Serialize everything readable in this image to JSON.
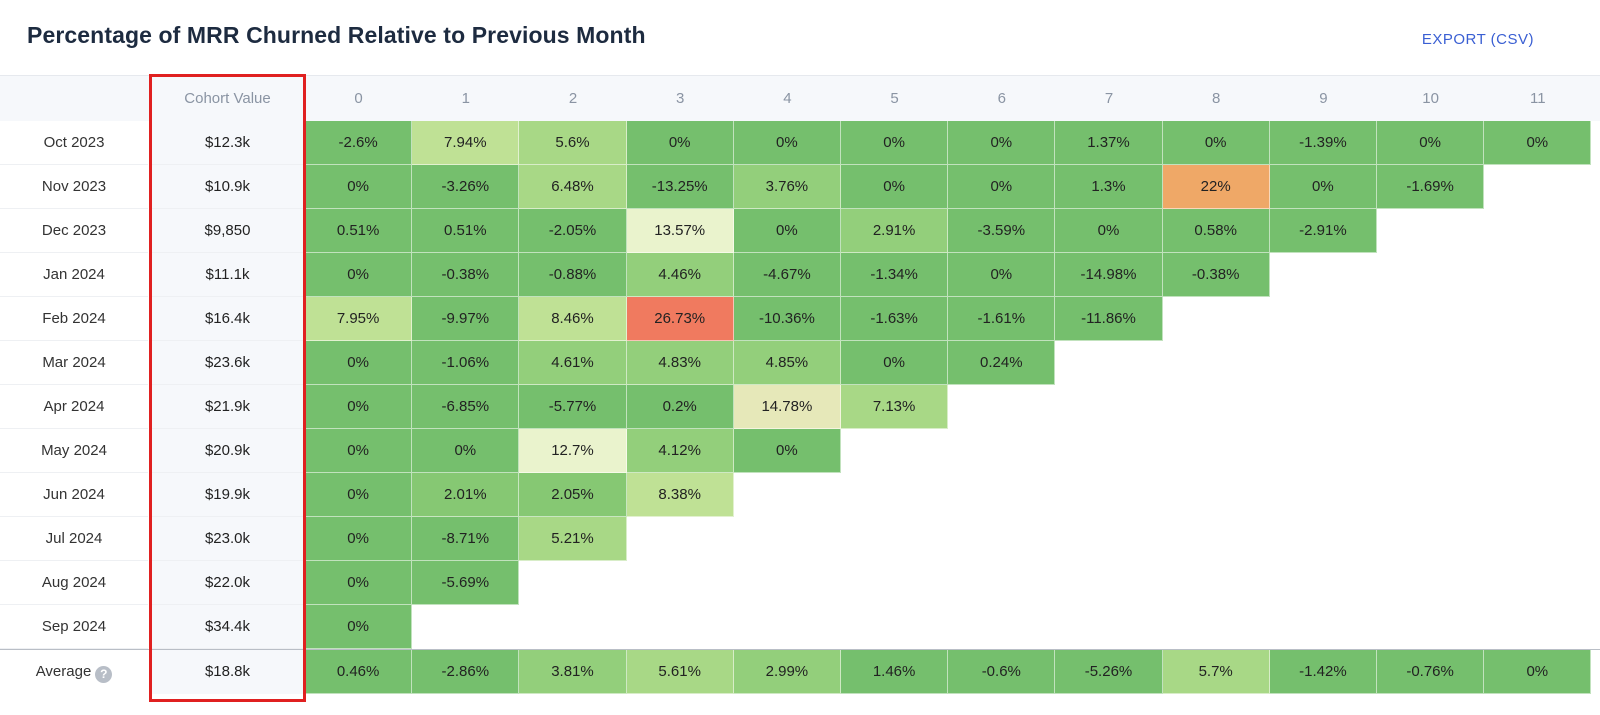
{
  "header": {
    "title": "Percentage of MRR Churned Relative to Previous Month",
    "export_label": "EXPORT (CSV)"
  },
  "table": {
    "cohort_header": "Cohort Value",
    "periods": [
      "0",
      "1",
      "2",
      "3",
      "4",
      "5",
      "6",
      "7",
      "8",
      "9",
      "10",
      "11"
    ],
    "rows": [
      {
        "label": "Oct 2023",
        "value": "$12.3k",
        "cells": [
          "-2.6%",
          "7.94%",
          "5.6%",
          "0%",
          "0%",
          "0%",
          "0%",
          "1.37%",
          "0%",
          "-1.39%",
          "0%",
          "0%"
        ]
      },
      {
        "label": "Nov 2023",
        "value": "$10.9k",
        "cells": [
          "0%",
          "-3.26%",
          "6.48%",
          "-13.25%",
          "3.76%",
          "0%",
          "0%",
          "1.3%",
          "22%",
          "0%",
          "-1.69%"
        ]
      },
      {
        "label": "Dec 2023",
        "value": "$9,850",
        "cells": [
          "0.51%",
          "0.51%",
          "-2.05%",
          "13.57%",
          "0%",
          "2.91%",
          "-3.59%",
          "0%",
          "0.58%",
          "-2.91%"
        ]
      },
      {
        "label": "Jan 2024",
        "value": "$11.1k",
        "cells": [
          "0%",
          "-0.38%",
          "-0.88%",
          "4.46%",
          "-4.67%",
          "-1.34%",
          "0%",
          "-14.98%",
          "-0.38%"
        ]
      },
      {
        "label": "Feb 2024",
        "value": "$16.4k",
        "cells": [
          "7.95%",
          "-9.97%",
          "8.46%",
          "26.73%",
          "-10.36%",
          "-1.63%",
          "-1.61%",
          "-11.86%"
        ]
      },
      {
        "label": "Mar 2024",
        "value": "$23.6k",
        "cells": [
          "0%",
          "-1.06%",
          "4.61%",
          "4.83%",
          "4.85%",
          "0%",
          "0.24%"
        ]
      },
      {
        "label": "Apr 2024",
        "value": "$21.9k",
        "cells": [
          "0%",
          "-6.85%",
          "-5.77%",
          "0.2%",
          "14.78%",
          "7.13%"
        ]
      },
      {
        "label": "May 2024",
        "value": "$20.9k",
        "cells": [
          "0%",
          "0%",
          "12.7%",
          "4.12%",
          "0%"
        ]
      },
      {
        "label": "Jun 2024",
        "value": "$19.9k",
        "cells": [
          "0%",
          "2.01%",
          "2.05%",
          "8.38%"
        ]
      },
      {
        "label": "Jul 2024",
        "value": "$23.0k",
        "cells": [
          "0%",
          "-8.71%",
          "5.21%"
        ]
      },
      {
        "label": "Aug 2024",
        "value": "$22.0k",
        "cells": [
          "0%",
          "-5.69%"
        ]
      },
      {
        "label": "Sep 2024",
        "value": "$34.4k",
        "cells": [
          "0%"
        ]
      }
    ],
    "average": {
      "label": "Average",
      "help_icon": "question-circle-icon",
      "help_glyph": "?",
      "value": "$18.8k",
      "cells": [
        "0.46%",
        "-2.86%",
        "3.81%",
        "5.61%",
        "2.99%",
        "1.46%",
        "-0.6%",
        "-5.26%",
        "5.7%",
        "-1.42%",
        "-0.76%",
        "0%"
      ]
    }
  },
  "colors": {
    "green": "#75bf6d",
    "highlight": "#e02020",
    "accent_link": "#3a5fd3"
  }
}
